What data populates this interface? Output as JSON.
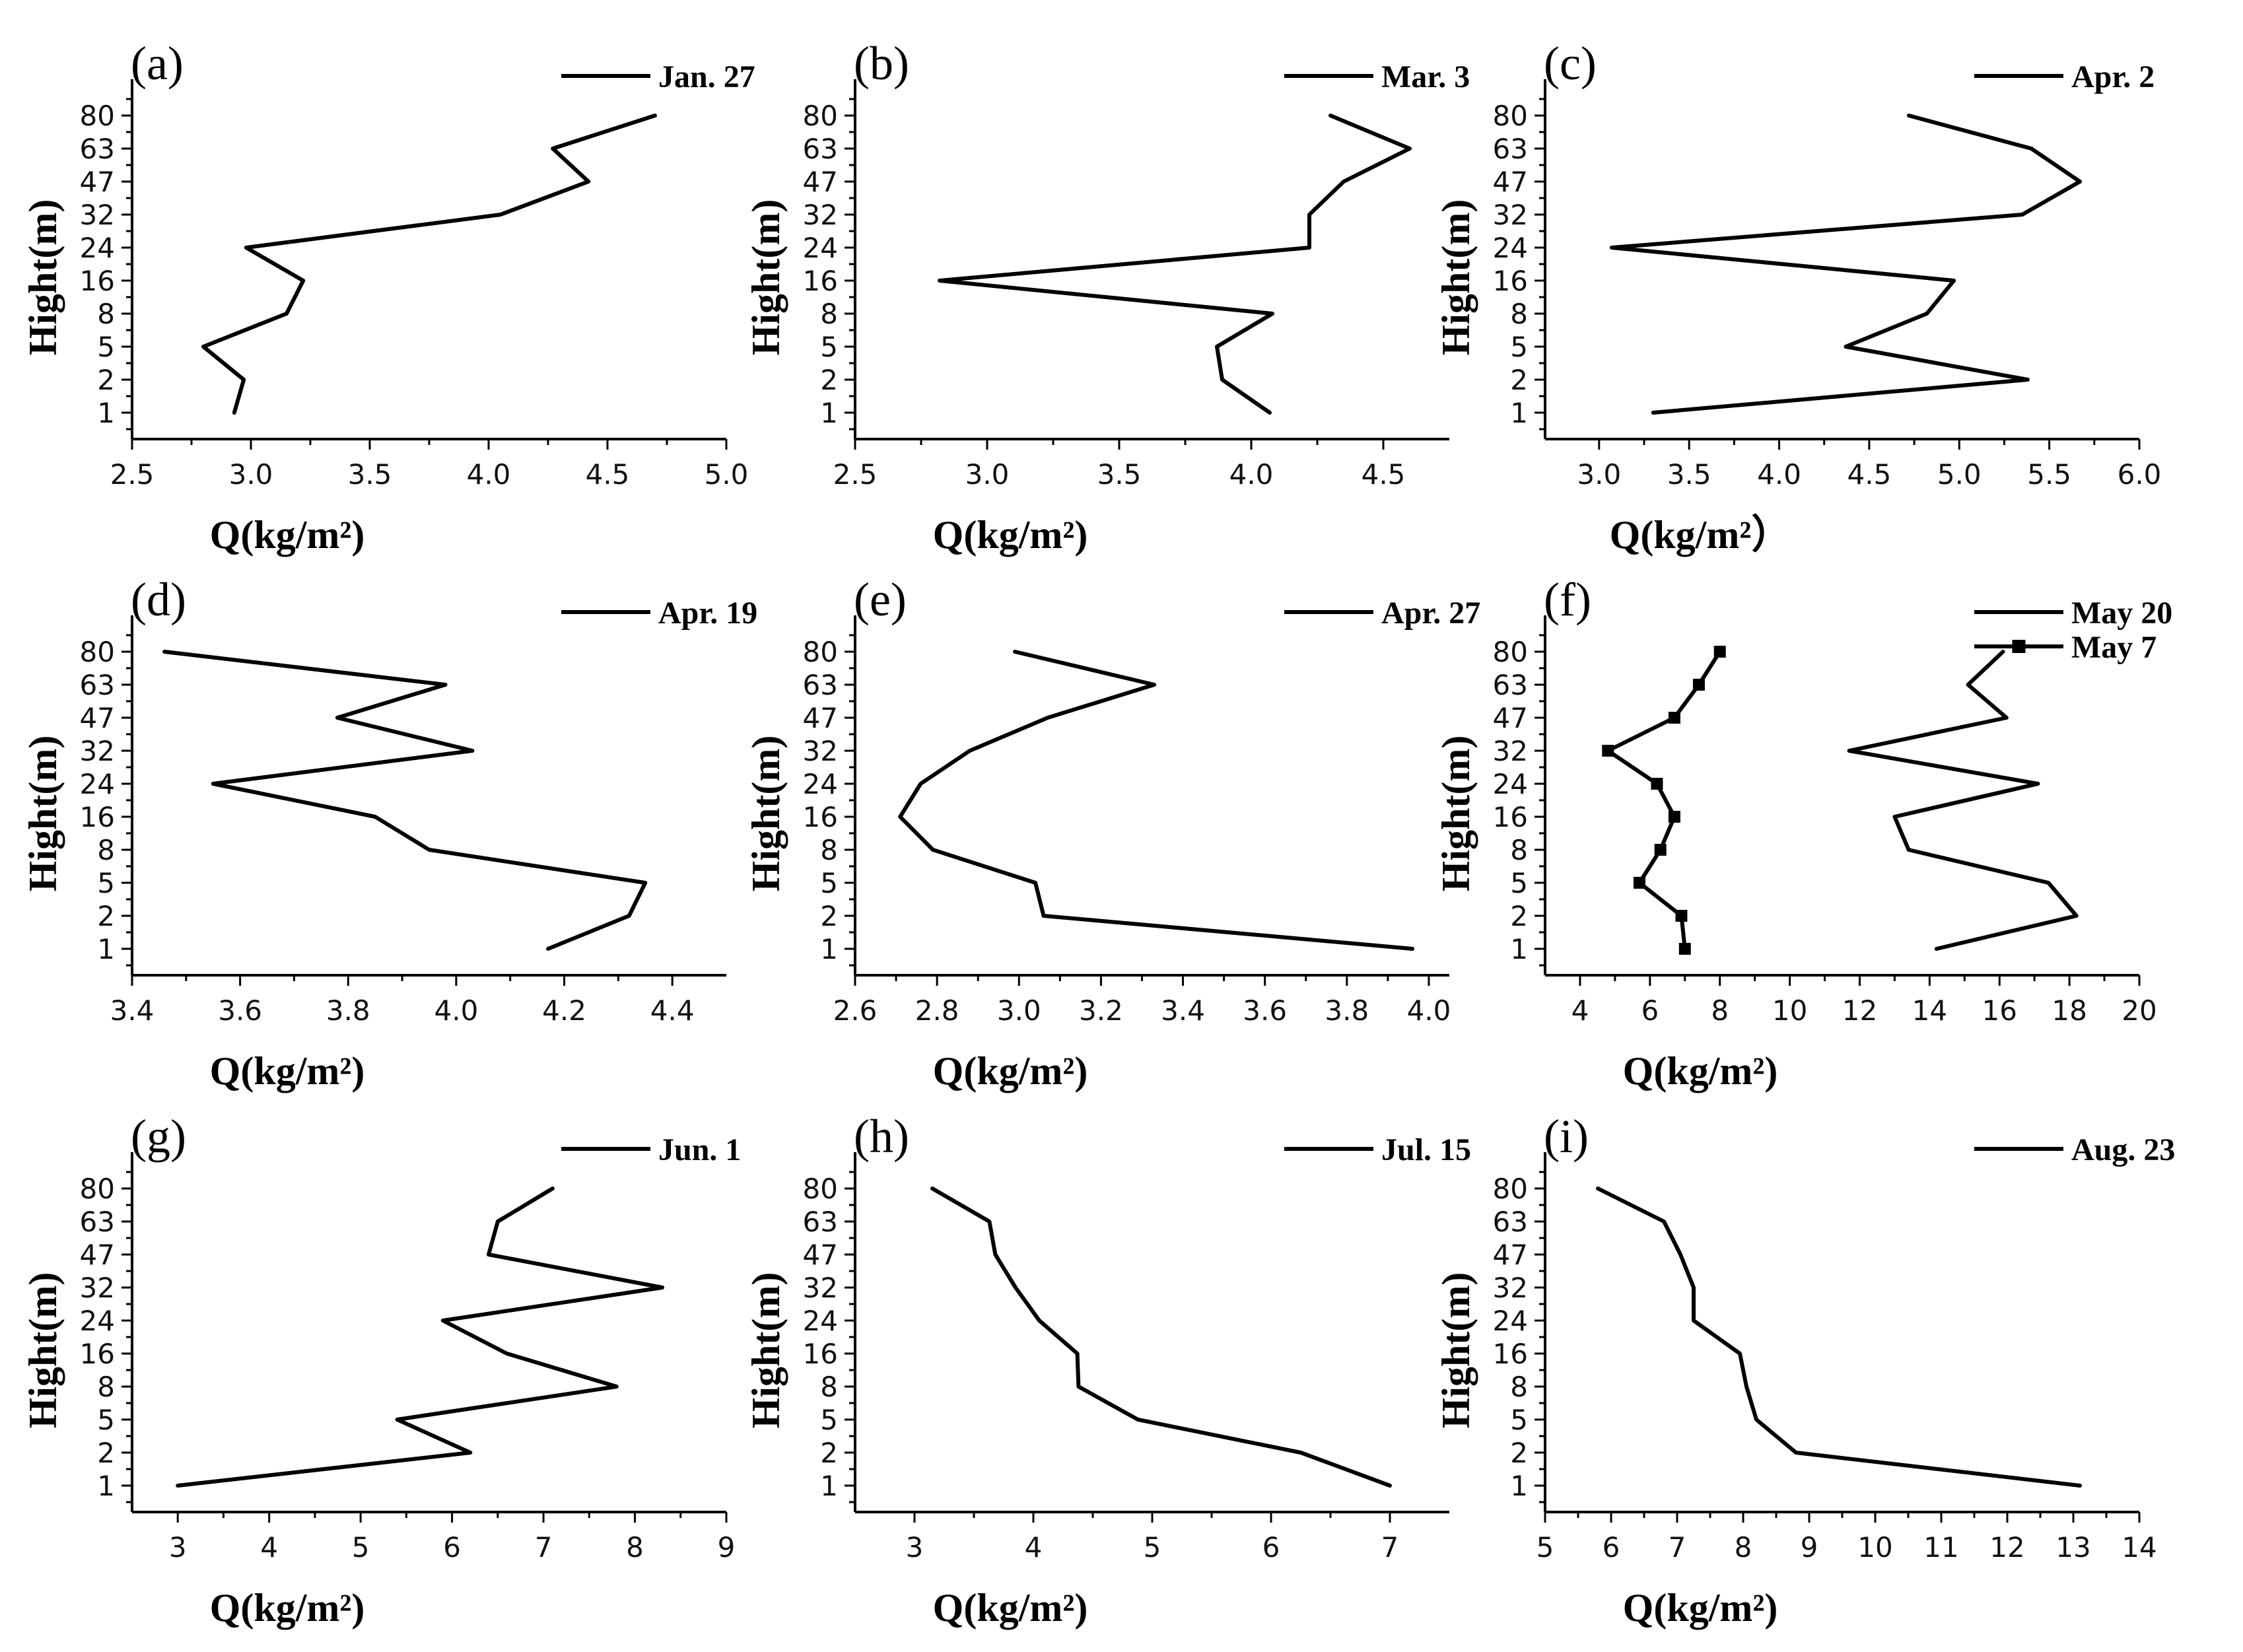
{
  "chart_data": [
    {
      "type": "line",
      "panel_label": "(a)",
      "xlabel": "Q(kg/m²)",
      "ylabel": "Hight(m)",
      "heights": [
        "1",
        "2",
        "5",
        "8",
        "16",
        "24",
        "32",
        "47",
        "63",
        "80"
      ],
      "xlim": [
        2.5,
        5.0
      ],
      "xticks": [
        2.5,
        3.0,
        3.5,
        4.0,
        4.5,
        5.0
      ],
      "xtick_labels": [
        "2.5",
        "3.0",
        "3.5",
        "4.0",
        "4.5",
        "5.0"
      ],
      "series": [
        {
          "name": "Jan. 27",
          "marker": "none",
          "values": [
            2.93,
            2.97,
            2.8,
            3.15,
            3.22,
            2.98,
            4.05,
            4.42,
            4.27,
            4.7
          ]
        }
      ]
    },
    {
      "type": "line",
      "panel_label": "(b)",
      "xlabel": "Q(kg/m²)",
      "ylabel": "Hight(m)",
      "heights": [
        "1",
        "2",
        "5",
        "8",
        "16",
        "24",
        "32",
        "47",
        "63",
        "80"
      ],
      "xlim": [
        2.5,
        4.75
      ],
      "xticks": [
        2.5,
        3.0,
        3.5,
        4.0,
        4.5
      ],
      "xtick_labels": [
        "2.5",
        "3.0",
        "3.5",
        "4.0",
        "4.5"
      ],
      "series": [
        {
          "name": "Mar. 3",
          "marker": "none",
          "values": [
            4.07,
            3.89,
            3.87,
            4.08,
            2.82,
            4.22,
            4.22,
            4.35,
            4.6,
            4.3
          ]
        }
      ]
    },
    {
      "type": "line",
      "panel_label": "(c)",
      "xlabel": "Q(kg/m²）",
      "ylabel": "Hight(m)",
      "heights": [
        "1",
        "2",
        "5",
        "8",
        "16",
        "24",
        "32",
        "47",
        "63",
        "80"
      ],
      "xlim": [
        2.7,
        6.0
      ],
      "xticks": [
        3.0,
        3.5,
        4.0,
        4.5,
        5.0,
        5.5,
        6.0
      ],
      "xtick_labels": [
        "3.0",
        "3.5",
        "4.0",
        "4.5",
        "5.0",
        "5.5",
        "6.0"
      ],
      "series": [
        {
          "name": "Apr. 2",
          "marker": "none",
          "values": [
            3.3,
            5.38,
            4.37,
            4.82,
            4.97,
            3.07,
            5.35,
            5.67,
            5.4,
            4.72
          ]
        }
      ]
    },
    {
      "type": "line",
      "panel_label": "(d)",
      "xlabel": "Q(kg/m²)",
      "ylabel": "Hight(m)",
      "heights": [
        "1",
        "2",
        "5",
        "8",
        "16",
        "24",
        "32",
        "47",
        "63",
        "80"
      ],
      "xlim": [
        3.4,
        4.5
      ],
      "xticks": [
        3.4,
        3.6,
        3.8,
        4.0,
        4.2,
        4.4
      ],
      "xtick_labels": [
        "3.4",
        "3.6",
        "3.8",
        "4.0",
        "4.2",
        "4.4"
      ],
      "series": [
        {
          "name": "Apr. 19",
          "marker": "none",
          "values": [
            4.17,
            4.32,
            4.35,
            3.95,
            3.85,
            3.55,
            4.03,
            3.78,
            3.98,
            3.46
          ]
        }
      ]
    },
    {
      "type": "line",
      "panel_label": "(e)",
      "xlabel": "Q(kg/m²)",
      "ylabel": "Hight(m)",
      "heights": [
        "1",
        "2",
        "5",
        "8",
        "16",
        "24",
        "32",
        "47",
        "63",
        "80"
      ],
      "xlim": [
        2.6,
        4.05
      ],
      "xticks": [
        2.6,
        2.8,
        3.0,
        3.2,
        3.4,
        3.6,
        3.8,
        4.0
      ],
      "xtick_labels": [
        "2.6",
        "2.8",
        "3.0",
        "3.2",
        "3.4",
        "3.6",
        "3.8",
        "4.0"
      ],
      "series": [
        {
          "name": "Apr. 27",
          "marker": "none",
          "values": [
            3.96,
            3.06,
            3.04,
            2.79,
            2.71,
            2.76,
            2.88,
            3.07,
            3.33,
            2.99
          ]
        }
      ]
    },
    {
      "type": "line",
      "panel_label": "(f)",
      "xlabel": "Q(kg/m²)",
      "ylabel": "Hight(m)",
      "heights": [
        "1",
        "2",
        "5",
        "8",
        "16",
        "24",
        "32",
        "47",
        "63",
        "80"
      ],
      "xlim": [
        3,
        20
      ],
      "xticks": [
        4,
        6,
        8,
        10,
        12,
        14,
        16,
        18,
        20
      ],
      "xtick_labels": [
        "4",
        "6",
        "8",
        "10",
        "12",
        "14",
        "16",
        "18",
        "20"
      ],
      "series": [
        {
          "name": "May 20",
          "marker": "none",
          "values": [
            14.2,
            18.2,
            17.4,
            13.4,
            13.0,
            17.1,
            11.7,
            16.2,
            15.1,
            16.1
          ]
        },
        {
          "name": "May 7",
          "marker": "square",
          "values": [
            7.0,
            6.9,
            5.7,
            6.3,
            6.7,
            6.2,
            4.8,
            6.7,
            7.4,
            8.0
          ]
        }
      ]
    },
    {
      "type": "line",
      "panel_label": "(g)",
      "xlabel": "Q(kg/m²)",
      "ylabel": "Hight(m)",
      "heights": [
        "1",
        "2",
        "5",
        "8",
        "16",
        "24",
        "32",
        "47",
        "63",
        "80"
      ],
      "xlim": [
        2.5,
        9.0
      ],
      "xticks": [
        3,
        4,
        5,
        6,
        7,
        8,
        9
      ],
      "xtick_labels": [
        "3",
        "4",
        "5",
        "6",
        "7",
        "8",
        "9"
      ],
      "series": [
        {
          "name": "Jun. 1",
          "marker": "none",
          "values": [
            3.0,
            6.2,
            5.4,
            7.8,
            6.6,
            5.9,
            8.3,
            6.4,
            6.5,
            7.1
          ]
        }
      ]
    },
    {
      "type": "line",
      "panel_label": "(h)",
      "xlabel": "Q(kg/m²)",
      "ylabel": "Hight(m)",
      "heights": [
        "1",
        "2",
        "5",
        "8",
        "16",
        "24",
        "32",
        "47",
        "63",
        "80"
      ],
      "xlim": [
        2.5,
        7.5
      ],
      "xticks": [
        3,
        4,
        5,
        6,
        7
      ],
      "xtick_labels": [
        "3",
        "4",
        "5",
        "6",
        "7"
      ],
      "series": [
        {
          "name": "Jul. 15",
          "marker": "none",
          "values": [
            7.0,
            6.25,
            4.88,
            4.38,
            4.37,
            4.05,
            3.85,
            3.68,
            3.63,
            3.15
          ]
        }
      ]
    },
    {
      "type": "line",
      "panel_label": "(i)",
      "xlabel": "Q(kg/m²)",
      "ylabel": "Hight(m)",
      "heights": [
        "1",
        "2",
        "5",
        "8",
        "16",
        "24",
        "32",
        "47",
        "63",
        "80"
      ],
      "xlim": [
        5,
        14
      ],
      "xticks": [
        5,
        6,
        7,
        8,
        9,
        10,
        11,
        12,
        13,
        14
      ],
      "xtick_labels": [
        "5",
        "6",
        "7",
        "8",
        "9",
        "10",
        "11",
        "12",
        "13",
        "14"
      ],
      "series": [
        {
          "name": "Aug. 23",
          "marker": "none",
          "values": [
            13.1,
            8.8,
            8.2,
            8.05,
            7.95,
            7.25,
            7.25,
            7.05,
            6.8,
            5.8
          ]
        }
      ]
    }
  ]
}
